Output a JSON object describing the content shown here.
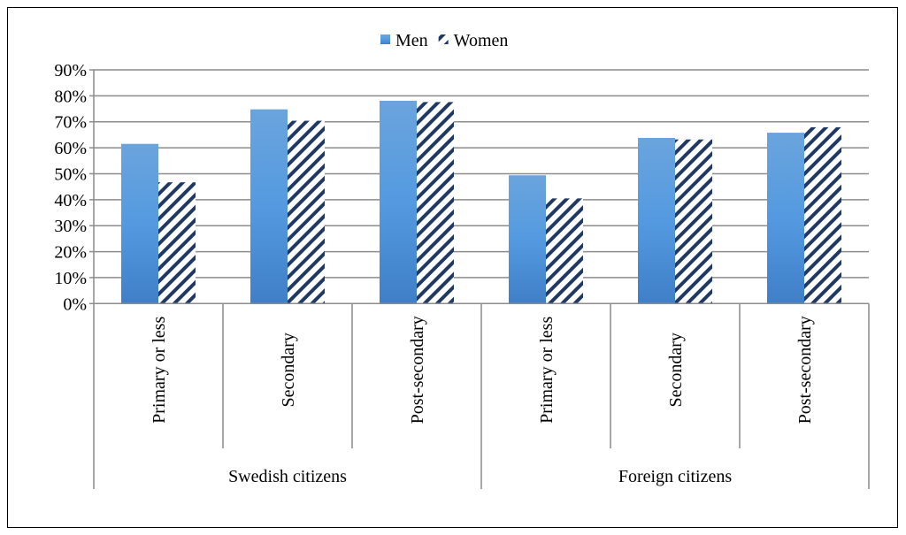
{
  "chart_data": {
    "type": "bar",
    "title": "",
    "xlabel": "",
    "ylabel": "",
    "ylim": [
      0,
      90
    ],
    "yticks": [
      "0%",
      "10%",
      "20%",
      "30%",
      "40%",
      "50%",
      "60%",
      "70%",
      "80%",
      "90%"
    ],
    "grid": true,
    "legend_placement": "top",
    "groups": [
      {
        "label": "Swedish citizens",
        "categories": [
          "Primary or less",
          "Secondary",
          "Post-secondary"
        ]
      },
      {
        "label": "Foreign citizens",
        "categories": [
          "Primary or less",
          "Secondary",
          "Post-secondary"
        ]
      }
    ],
    "series": [
      {
        "name": "Men",
        "color": "#4a8fd6",
        "pattern": "solid-gradient",
        "values": [
          61.5,
          74.8,
          78.1,
          49.4,
          63.8,
          65.8
        ]
      },
      {
        "name": "Women",
        "color": "#1f3864",
        "pattern": "diagonal-stripes",
        "values": [
          46.7,
          70.4,
          77.6,
          40.5,
          63.2,
          67.9
        ]
      }
    ]
  }
}
